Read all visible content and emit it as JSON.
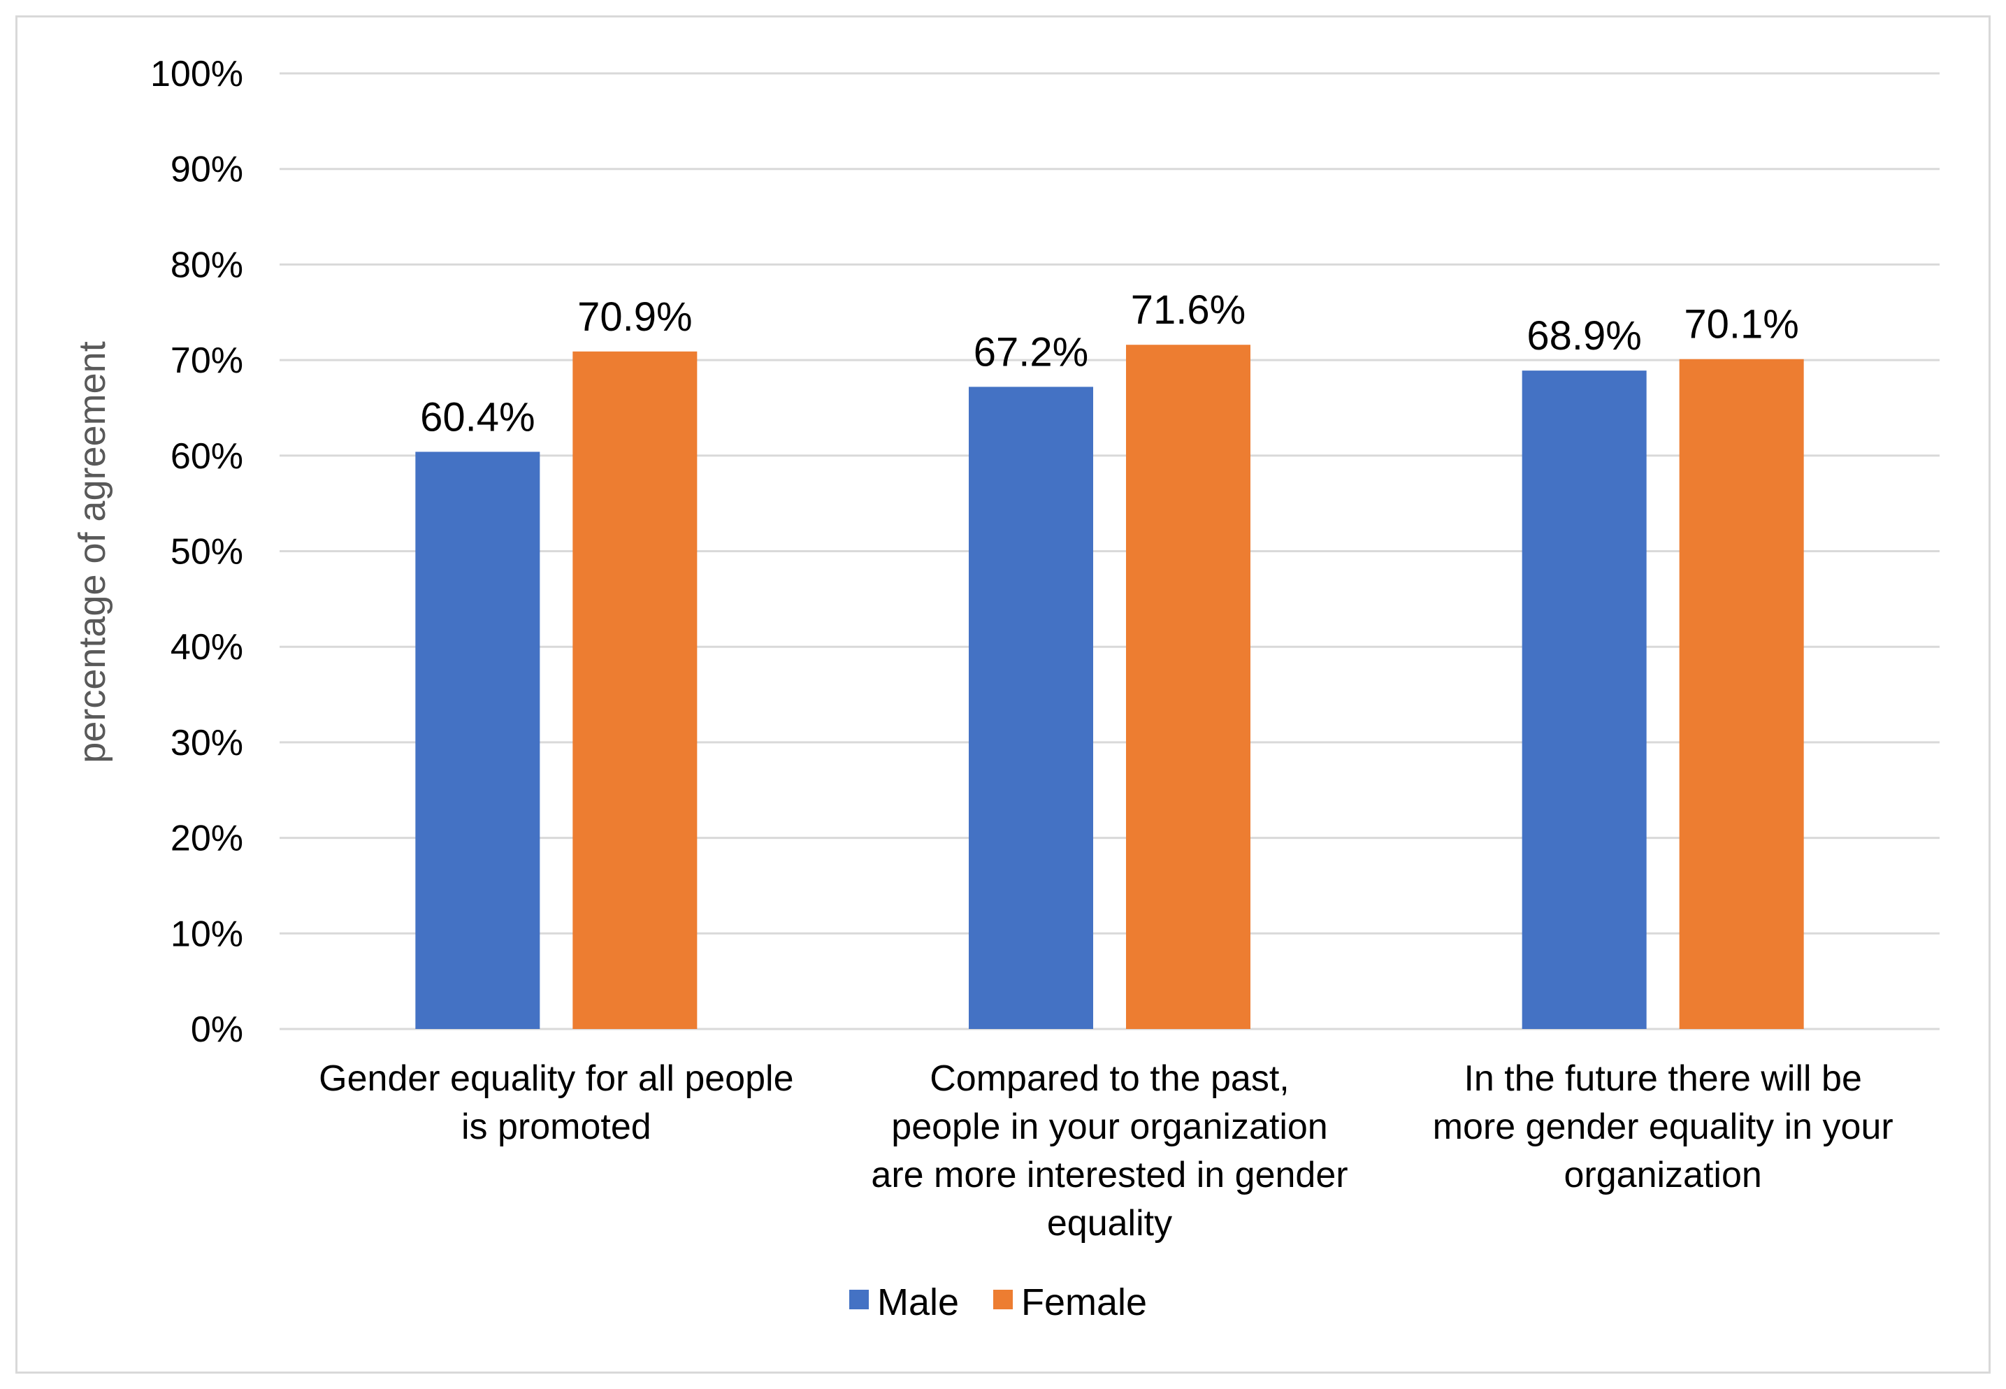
{
  "chart_data": {
    "type": "bar",
    "ylabel": "percentage of agreement",
    "xlabel": "",
    "ylim": [
      0,
      100
    ],
    "yticks": [
      "0%",
      "10%",
      "20%",
      "30%",
      "40%",
      "50%",
      "60%",
      "70%",
      "80%",
      "90%",
      "100%"
    ],
    "grid": true,
    "legend_position": "bottom",
    "categories": [
      [
        "Gender equality for all people",
        "is promoted"
      ],
      [
        "Compared to the past,",
        "people in your organization",
        "are more interested in gender",
        "equality"
      ],
      [
        "In the future there will be",
        "more gender equality in your",
        "organization"
      ]
    ],
    "series": [
      {
        "name": "Male",
        "color": "#4472C4",
        "values": [
          60.4,
          67.2,
          68.9
        ],
        "labels": [
          "60.4%",
          "67.2%",
          "68.9%"
        ]
      },
      {
        "name": "Female",
        "color": "#ED7D31",
        "values": [
          70.9,
          71.6,
          70.1
        ],
        "labels": [
          "70.9%",
          "71.6%",
          "70.1%"
        ]
      }
    ]
  }
}
